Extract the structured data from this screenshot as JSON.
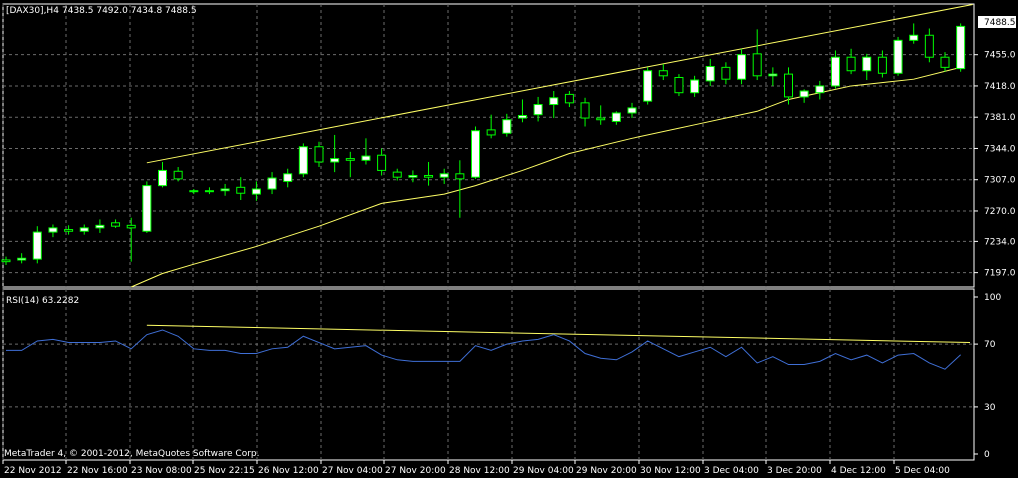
{
  "main_chart": {
    "symbol_label": "[DAX30],H4",
    "ohlc_label": "7438.5 7492.0 7434.8 7488.5",
    "last_price_label": "7488.5",
    "y_ticks": [
      "7455.0",
      "7418.0",
      "7381.0",
      "7344.0",
      "7307.0",
      "7270.0",
      "7234.0",
      "7197.0"
    ]
  },
  "rsi_panel": {
    "label": "RSI(14) 63.2282",
    "y_ticks": [
      "100",
      "70",
      "30",
      "0"
    ],
    "copyright": "MetaTrader 4, © 2001-2012, MetaQuotes Software Corp."
  },
  "x_axis": {
    "labels": [
      "22 Nov 2012",
      "22 Nov 16:00",
      "23 Nov 08:00",
      "25 Nov 22:15",
      "26 Nov 12:00",
      "27 Nov 04:00",
      "27 Nov 20:00",
      "28 Nov 12:00",
      "29 Nov 04:00",
      "29 Nov 20:00",
      "30 Nov 12:00",
      "3 Dec 04:00",
      "3 Dec 20:00",
      "4 Dec 12:00",
      "5 Dec 04:00"
    ]
  },
  "colors": {
    "background": "#000000",
    "grid": "#6b6b6b",
    "bull_candle": "#ffffff",
    "bear_candle": "#000000",
    "candle_outline": "#00ff00",
    "channel": "#ffff66",
    "rsi_line": "#3f6fd6",
    "rsi_trend": "#ffff66",
    "text": "#ffffff"
  },
  "chart_data": [
    {
      "type": "candlestick",
      "title": "[DAX30],H4",
      "y_range": [
        7180,
        7515
      ],
      "candles": [
        {
          "o": 7212,
          "h": 7216,
          "l": 7206,
          "c": 7210
        },
        {
          "o": 7212,
          "h": 7220,
          "l": 7208,
          "c": 7214
        },
        {
          "o": 7213,
          "h": 7252,
          "l": 7208,
          "c": 7245
        },
        {
          "o": 7245,
          "h": 7254,
          "l": 7239,
          "c": 7250
        },
        {
          "o": 7248,
          "h": 7253,
          "l": 7242,
          "c": 7246
        },
        {
          "o": 7246,
          "h": 7254,
          "l": 7242,
          "c": 7250
        },
        {
          "o": 7250,
          "h": 7260,
          "l": 7244,
          "c": 7253
        },
        {
          "o": 7256,
          "h": 7260,
          "l": 7250,
          "c": 7252
        },
        {
          "o": 7253,
          "h": 7262,
          "l": 7210,
          "c": 7250
        },
        {
          "o": 7246,
          "h": 7305,
          "l": 7244,
          "c": 7300
        },
        {
          "o": 7300,
          "h": 7328,
          "l": 7298,
          "c": 7318
        },
        {
          "o": 7317,
          "h": 7322,
          "l": 7305,
          "c": 7308
        },
        {
          "o": 7294,
          "h": 7296,
          "l": 7290,
          "c": 7293
        },
        {
          "o": 7293,
          "h": 7298,
          "l": 7290,
          "c": 7294
        },
        {
          "o": 7294,
          "h": 7302,
          "l": 7288,
          "c": 7296
        },
        {
          "o": 7298,
          "h": 7310,
          "l": 7283,
          "c": 7291
        },
        {
          "o": 7290,
          "h": 7305,
          "l": 7282,
          "c": 7296
        },
        {
          "o": 7296,
          "h": 7316,
          "l": 7290,
          "c": 7309
        },
        {
          "o": 7305,
          "h": 7320,
          "l": 7298,
          "c": 7314
        },
        {
          "o": 7314,
          "h": 7350,
          "l": 7310,
          "c": 7346
        },
        {
          "o": 7346,
          "h": 7352,
          "l": 7322,
          "c": 7328
        },
        {
          "o": 7328,
          "h": 7360,
          "l": 7316,
          "c": 7332
        },
        {
          "o": 7332,
          "h": 7340,
          "l": 7310,
          "c": 7330
        },
        {
          "o": 7330,
          "h": 7356,
          "l": 7325,
          "c": 7335
        },
        {
          "o": 7336,
          "h": 7344,
          "l": 7312,
          "c": 7318
        },
        {
          "o": 7316,
          "h": 7320,
          "l": 7306,
          "c": 7310
        },
        {
          "o": 7310,
          "h": 7318,
          "l": 7304,
          "c": 7312
        },
        {
          "o": 7312,
          "h": 7328,
          "l": 7300,
          "c": 7310
        },
        {
          "o": 7310,
          "h": 7320,
          "l": 7302,
          "c": 7314
        },
        {
          "o": 7314,
          "h": 7330,
          "l": 7262,
          "c": 7308
        },
        {
          "o": 7310,
          "h": 7370,
          "l": 7308,
          "c": 7365
        },
        {
          "o": 7366,
          "h": 7384,
          "l": 7356,
          "c": 7360
        },
        {
          "o": 7362,
          "h": 7385,
          "l": 7358,
          "c": 7378
        },
        {
          "o": 7380,
          "h": 7402,
          "l": 7375,
          "c": 7383
        },
        {
          "o": 7384,
          "h": 7405,
          "l": 7376,
          "c": 7396
        },
        {
          "o": 7396,
          "h": 7412,
          "l": 7380,
          "c": 7404
        },
        {
          "o": 7408,
          "h": 7412,
          "l": 7393,
          "c": 7398
        },
        {
          "o": 7398,
          "h": 7404,
          "l": 7370,
          "c": 7380
        },
        {
          "o": 7380,
          "h": 7395,
          "l": 7372,
          "c": 7378
        },
        {
          "o": 7376,
          "h": 7388,
          "l": 7372,
          "c": 7386
        },
        {
          "o": 7386,
          "h": 7398,
          "l": 7380,
          "c": 7392
        },
        {
          "o": 7400,
          "h": 7440,
          "l": 7396,
          "c": 7436
        },
        {
          "o": 7436,
          "h": 7444,
          "l": 7425,
          "c": 7430
        },
        {
          "o": 7428,
          "h": 7432,
          "l": 7406,
          "c": 7410
        },
        {
          "o": 7410,
          "h": 7430,
          "l": 7405,
          "c": 7425
        },
        {
          "o": 7424,
          "h": 7450,
          "l": 7418,
          "c": 7441
        },
        {
          "o": 7440,
          "h": 7446,
          "l": 7420,
          "c": 7426
        },
        {
          "o": 7426,
          "h": 7462,
          "l": 7420,
          "c": 7455
        },
        {
          "o": 7456,
          "h": 7485,
          "l": 7425,
          "c": 7430
        },
        {
          "o": 7430,
          "h": 7440,
          "l": 7418,
          "c": 7432
        },
        {
          "o": 7432,
          "h": 7440,
          "l": 7396,
          "c": 7405
        },
        {
          "o": 7405,
          "h": 7414,
          "l": 7398,
          "c": 7412
        },
        {
          "o": 7410,
          "h": 7424,
          "l": 7402,
          "c": 7418
        },
        {
          "o": 7418,
          "h": 7460,
          "l": 7415,
          "c": 7452
        },
        {
          "o": 7452,
          "h": 7462,
          "l": 7432,
          "c": 7436
        },
        {
          "o": 7436,
          "h": 7456,
          "l": 7425,
          "c": 7452
        },
        {
          "o": 7452,
          "h": 7460,
          "l": 7428,
          "c": 7433
        },
        {
          "o": 7433,
          "h": 7476,
          "l": 7430,
          "c": 7472
        },
        {
          "o": 7472,
          "h": 7492,
          "l": 7468,
          "c": 7478
        },
        {
          "o": 7478,
          "h": 7486,
          "l": 7446,
          "c": 7452
        },
        {
          "o": 7452,
          "h": 7458,
          "l": 7435,
          "c": 7440
        },
        {
          "o": 7438.5,
          "h": 7492.0,
          "l": 7434.8,
          "c": 7488.5
        }
      ],
      "channel_upper": [
        [
          9,
          7327
        ],
        [
          61,
          7512
        ]
      ],
      "channel_lower": [
        {
          "i": 8,
          "v": 7180
        },
        {
          "i": 10,
          "v": 7196
        },
        {
          "i": 12,
          "v": 7207
        },
        {
          "i": 16,
          "v": 7228
        },
        {
          "i": 20,
          "v": 7252
        },
        {
          "i": 24,
          "v": 7279
        },
        {
          "i": 28,
          "v": 7290
        },
        {
          "i": 30,
          "v": 7300
        },
        {
          "i": 33,
          "v": 7318
        },
        {
          "i": 36,
          "v": 7338
        },
        {
          "i": 40,
          "v": 7356
        },
        {
          "i": 44,
          "v": 7372
        },
        {
          "i": 48,
          "v": 7388
        },
        {
          "i": 50,
          "v": 7402
        },
        {
          "i": 52,
          "v": 7410
        },
        {
          "i": 54,
          "v": 7418
        },
        {
          "i": 58,
          "v": 7426
        },
        {
          "i": 61,
          "v": 7440
        }
      ]
    },
    {
      "type": "line",
      "title": "RSI(14) 63.2282",
      "y_range": [
        0,
        100
      ],
      "y_ticks": [
        100,
        70,
        30,
        0
      ],
      "rsi": [
        66,
        66,
        72,
        73,
        71,
        71,
        71,
        72,
        67,
        76,
        79,
        75,
        67,
        66,
        66,
        64,
        64,
        67,
        68,
        75,
        71,
        67,
        68,
        69,
        63,
        60,
        59,
        59,
        59,
        59,
        69,
        66,
        70,
        72,
        73,
        76,
        72,
        64,
        61,
        60,
        65,
        72,
        67,
        62,
        65,
        68,
        62,
        68,
        58,
        62,
        57,
        57,
        59,
        64,
        60,
        63,
        58,
        63,
        64,
        58,
        54,
        63.2282
      ],
      "trend_line": [
        [
          9,
          82
        ],
        [
          61,
          71
        ]
      ]
    }
  ]
}
